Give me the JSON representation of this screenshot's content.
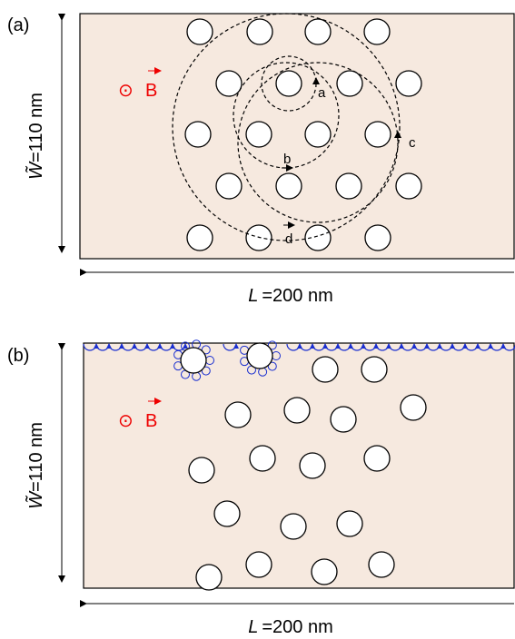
{
  "panels": [
    {
      "label": "(a)",
      "field": {
        "symbol": "⊙",
        "label": "B"
      },
      "width_label": {
        "symbol": "W̃",
        "value": "=110 nm"
      },
      "length_label": {
        "symbol": "L",
        "value": "=200 nm"
      },
      "orbits": [
        "a",
        "b",
        "c",
        "d"
      ]
    },
    {
      "label": "(b)",
      "field": {
        "symbol": "⊙",
        "label": "B"
      },
      "width_label": {
        "symbol": "W̃",
        "value": "=110 nm"
      },
      "length_label": {
        "symbol": "L",
        "value": "=200 nm"
      }
    }
  ]
}
